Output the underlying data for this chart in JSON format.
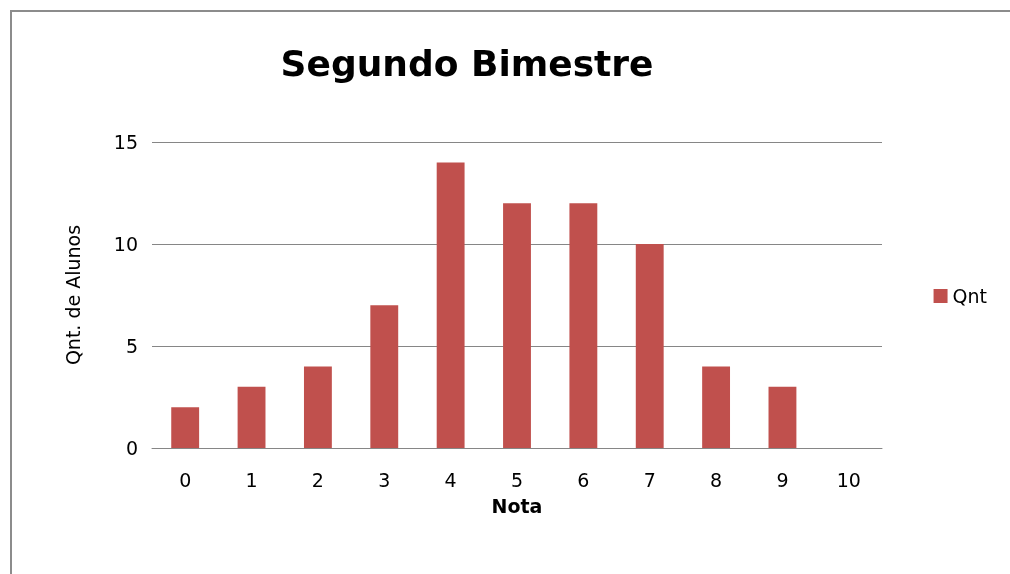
{
  "chart_data": {
    "type": "bar",
    "title": "Segundo Bimestre",
    "xlabel": "Nota",
    "ylabel": "Qnt. de Alunos",
    "categories": [
      "0",
      "1",
      "2",
      "3",
      "4",
      "5",
      "6",
      "7",
      "8",
      "9",
      "10"
    ],
    "series": [
      {
        "name": "Qnt",
        "color": "#c0504d",
        "values": [
          2,
          3,
          4,
          7,
          14,
          12,
          12,
          10,
          4,
          3,
          0
        ]
      }
    ],
    "ylim": [
      0,
      15
    ],
    "yticks": [
      0,
      5,
      10,
      15
    ],
    "grid": "y",
    "legend": "right"
  }
}
